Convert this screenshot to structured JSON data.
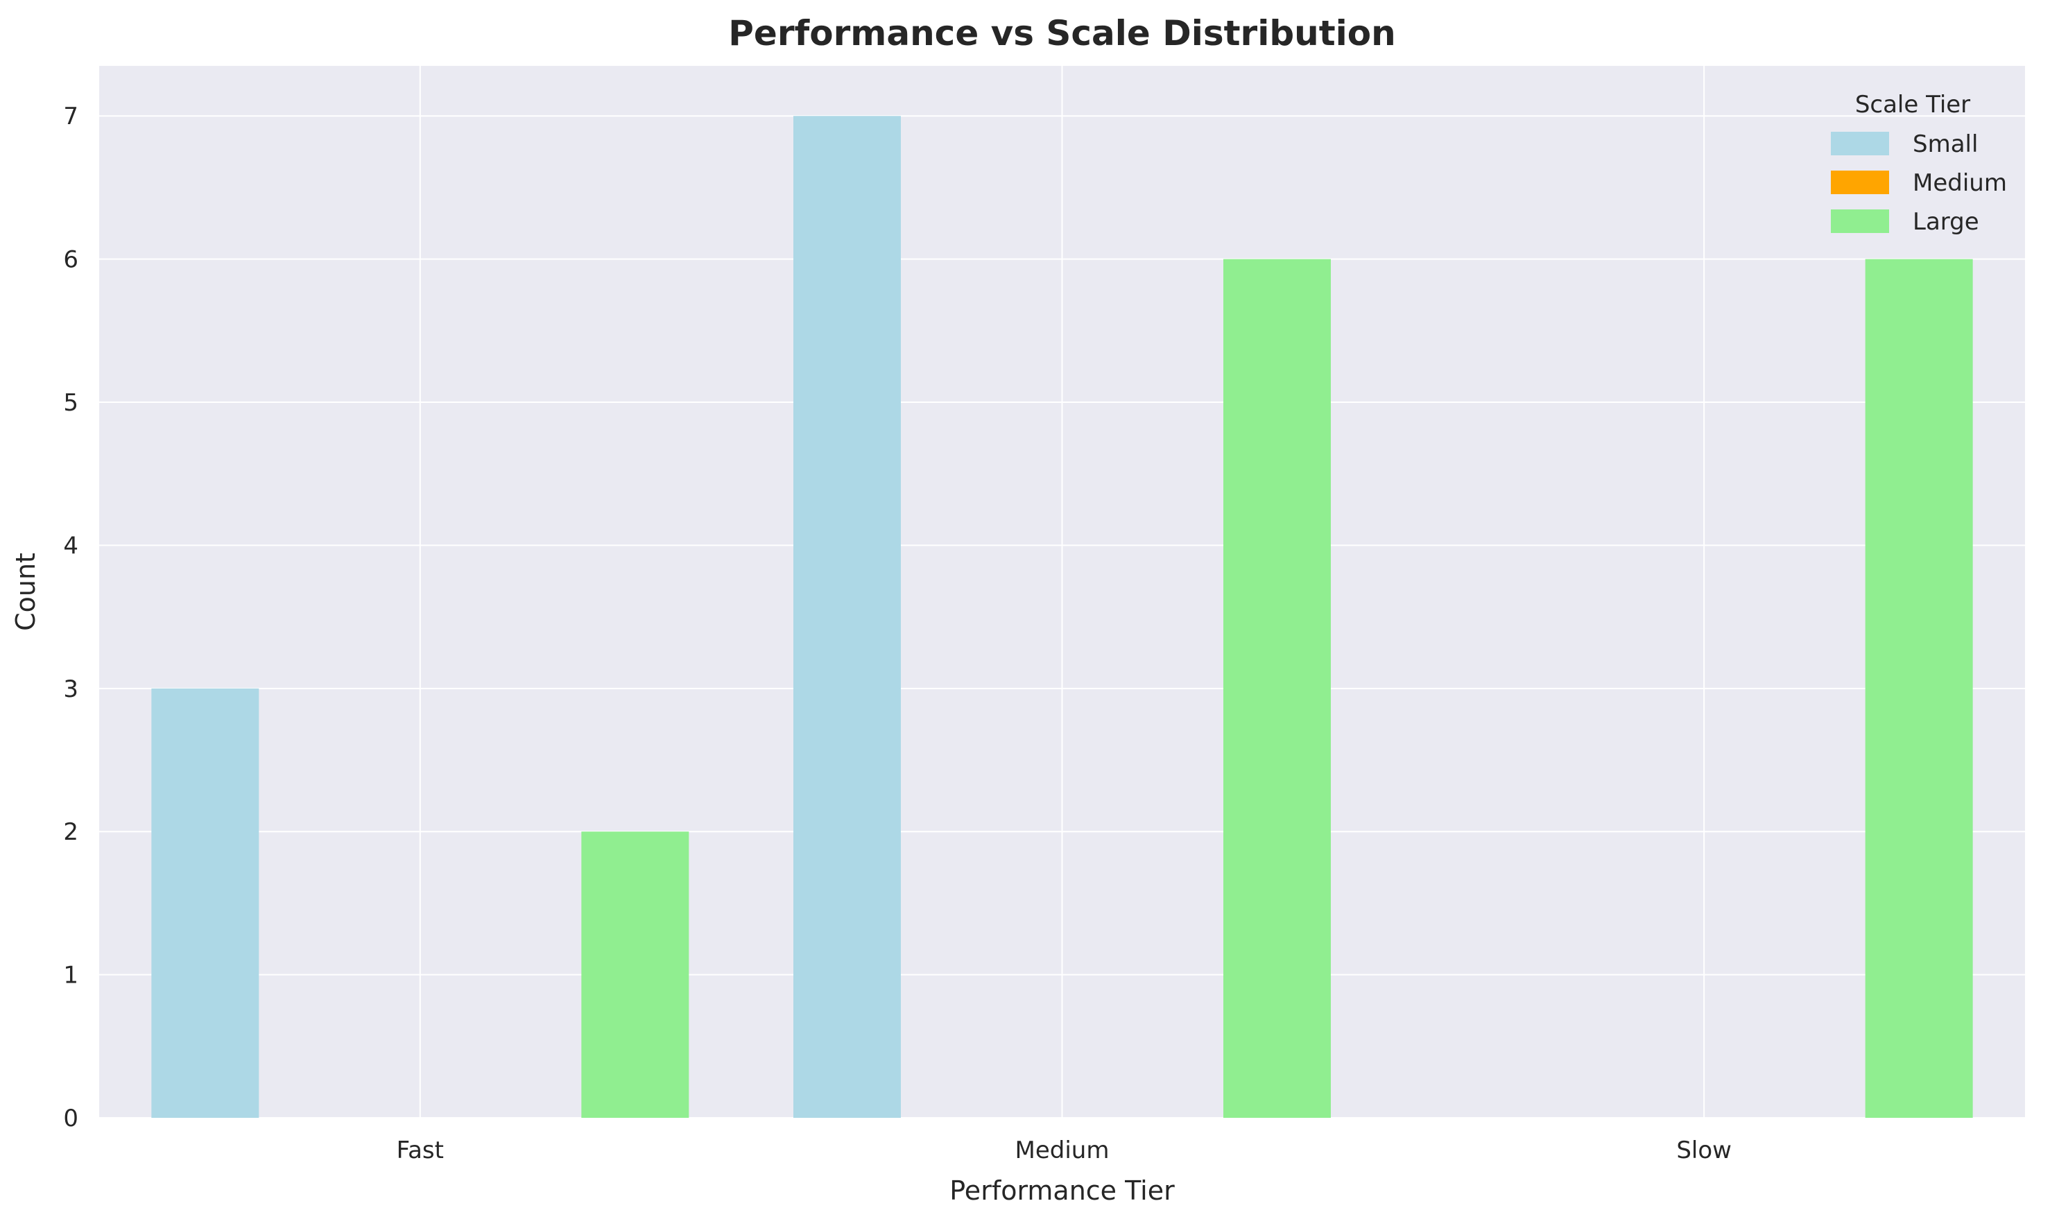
{
  "chart_data": {
    "type": "bar",
    "title": "Performance vs Scale Distribution",
    "xlabel": "Performance Tier",
    "ylabel": "Count",
    "categories": [
      "Fast",
      "Medium",
      "Slow"
    ],
    "series": [
      {
        "name": "Small",
        "values": [
          3,
          7,
          0
        ],
        "color": "#add8e6"
      },
      {
        "name": "Medium",
        "values": [
          0,
          0,
          0
        ],
        "color": "#ffa500"
      },
      {
        "name": "Large",
        "values": [
          2,
          6,
          6
        ],
        "color": "#90ee90"
      }
    ],
    "ylim": [
      0,
      7.35
    ],
    "yticks": [
      "0",
      "1",
      "2",
      "3",
      "4",
      "5",
      "6",
      "7"
    ],
    "grid": true,
    "background": "#eaeaf2",
    "legend": {
      "title": "Scale Tier",
      "placement": "top-right"
    }
  }
}
